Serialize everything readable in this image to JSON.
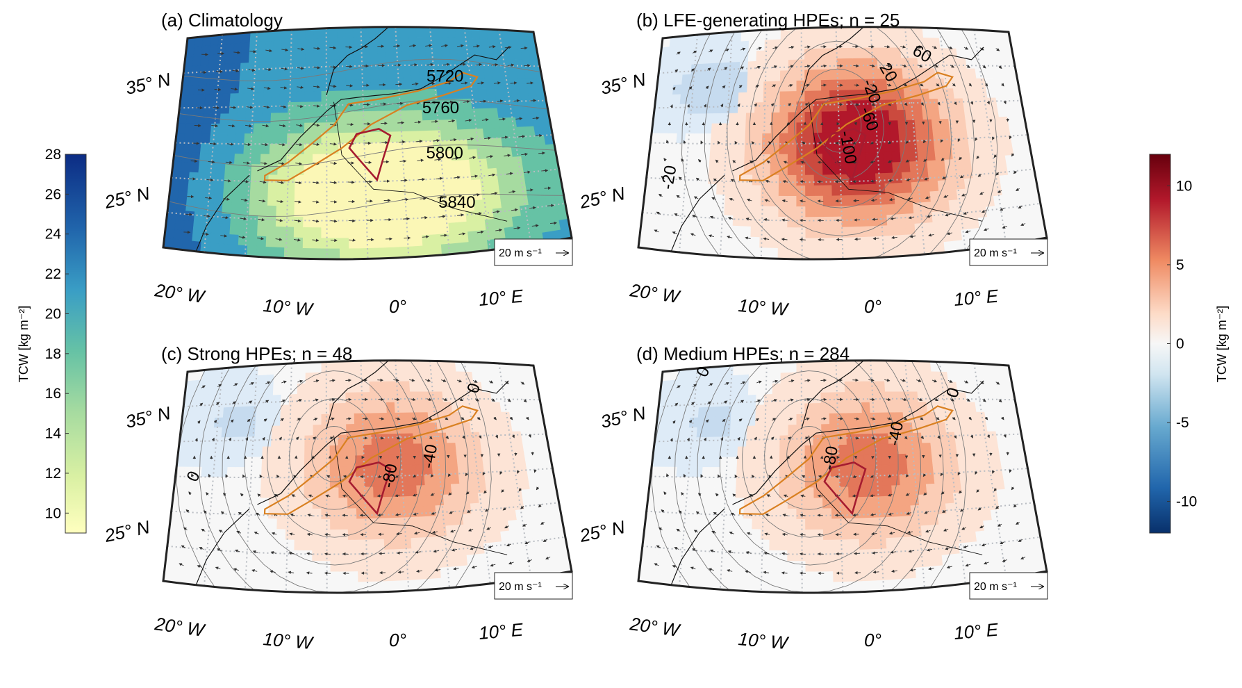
{
  "colors": {
    "coast": "#111111",
    "region_outline": "#d98021",
    "target_outline": "#a51c30",
    "graticule": "#b8bcc2",
    "contour": "#7a7a7a",
    "arrow": "#333333",
    "seq_colormap": [
      "#ffffbf",
      "#d9f0a3",
      "#a6dba0",
      "#66c2a5",
      "#3288bd",
      "#2166ac",
      "#0c2c84"
    ],
    "div_colormap": [
      "#08306b",
      "#2166ac",
      "#67a9cf",
      "#d1e5f0",
      "#f7f7f7",
      "#fddbc7",
      "#ef8a62",
      "#b2182b",
      "#67000d"
    ]
  },
  "panels": [
    {
      "id": "a",
      "title": "(a) Climatology",
      "field": "climatology",
      "lat_labels": [
        "35° N",
        "25° N"
      ],
      "lon_labels": [
        "20° W",
        "10° W",
        "0°",
        "10° E"
      ],
      "contour_labels": [
        "5720",
        "5760",
        "5800",
        "5840"
      ],
      "scale_label": "20 m s⁻¹"
    },
    {
      "id": "b",
      "title": "(b) LFE-generating HPEs; n = 25",
      "field": "anomaly_strong",
      "lat_labels": [
        "35° N",
        "25° N"
      ],
      "lon_labels": [
        "20° W",
        "10° W",
        "0°",
        "10° E"
      ],
      "contour_labels": [
        "-100",
        "-60",
        "-20",
        "-20",
        "60",
        "20"
      ],
      "scale_label": "20 m s⁻¹"
    },
    {
      "id": "c",
      "title": "(c) Strong HPEs; n = 48",
      "field": "anomaly_medium",
      "lat_labels": [
        "35° N",
        "25° N"
      ],
      "lon_labels": [
        "20° W",
        "10° W",
        "0°",
        "10° E"
      ],
      "contour_labels": [
        "0",
        "-80",
        "-40",
        "0"
      ],
      "scale_label": "20 m s⁻¹"
    },
    {
      "id": "d",
      "title": "(d) Medium HPEs; n = 284",
      "field": "anomaly_medium",
      "lat_labels": [
        "35° N",
        "25° N"
      ],
      "lon_labels": [
        "20° W",
        "10° W",
        "0°",
        "10° E"
      ],
      "contour_labels": [
        "0",
        "-80",
        "-40",
        "0"
      ],
      "scale_label": "20 m s⁻¹"
    }
  ],
  "colorbar_left": {
    "label": "TCW [kg m⁻²]",
    "ticks": [
      "28",
      "26",
      "24",
      "22",
      "20",
      "18",
      "16",
      "14",
      "12",
      "10"
    ],
    "range": [
      9,
      28
    ]
  },
  "colorbar_right": {
    "label": "TCW [kg m⁻²]",
    "ticks": [
      "10",
      "5",
      "0",
      "-5",
      "-10"
    ],
    "range": [
      -12,
      12
    ]
  }
}
